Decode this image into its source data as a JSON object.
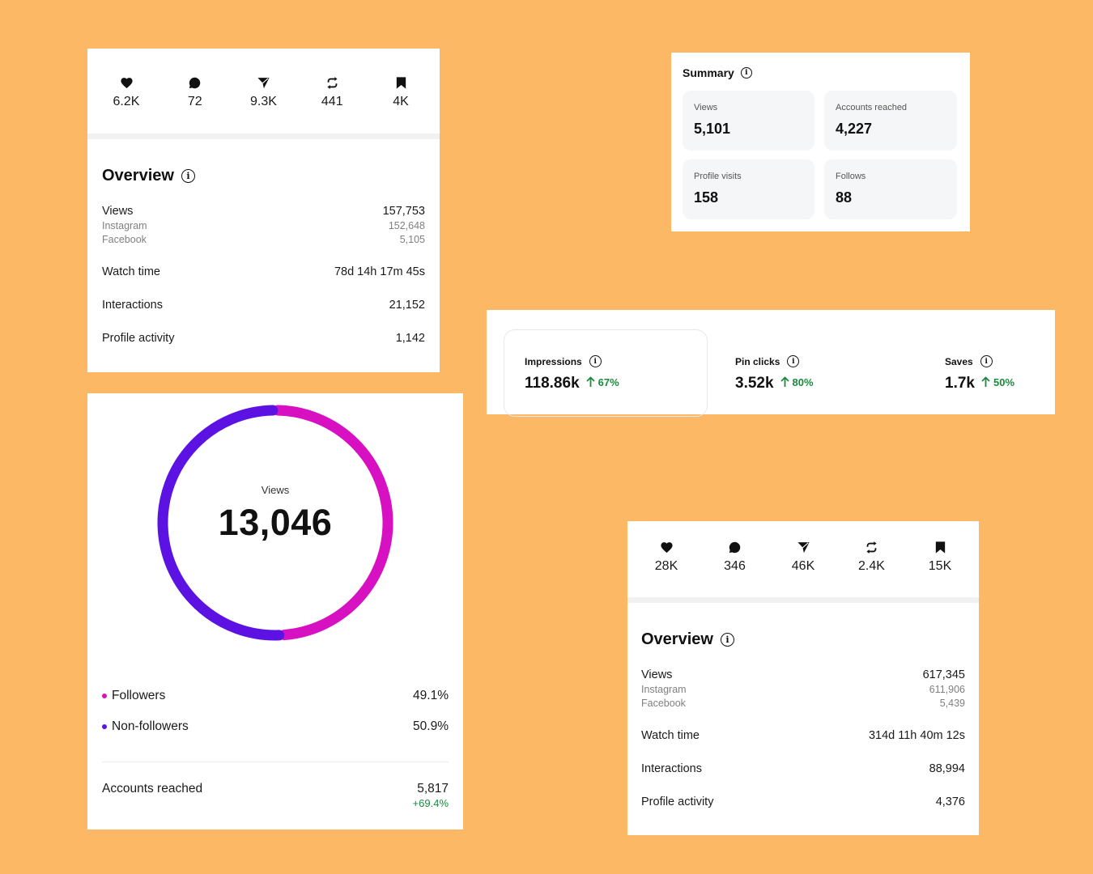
{
  "colors": {
    "background": "#FDB866",
    "followers": "#D711C2",
    "non_followers": "#5B12E3",
    "positive": "#1B8A3D"
  },
  "post_one": {
    "engagement": [
      {
        "icon": "heart-icon",
        "value": "6.2K"
      },
      {
        "icon": "comment-icon",
        "value": "72"
      },
      {
        "icon": "share-icon",
        "value": "9.3K"
      },
      {
        "icon": "repost-icon",
        "value": "441"
      },
      {
        "icon": "bookmark-icon",
        "value": "4K"
      }
    ],
    "overview": {
      "title": "Overview",
      "views_label": "Views",
      "views_value": "157,753",
      "instagram_label": "Instagram",
      "instagram_value": "152,648",
      "facebook_label": "Facebook",
      "facebook_value": "5,105",
      "watch_time_label": "Watch time",
      "watch_time_value": "78d 14h 17m 45s",
      "interactions_label": "Interactions",
      "interactions_value": "21,152",
      "profile_activity_label": "Profile activity",
      "profile_activity_value": "1,142"
    }
  },
  "post_two": {
    "engagement": [
      {
        "icon": "heart-icon",
        "value": "28K"
      },
      {
        "icon": "comment-icon",
        "value": "346"
      },
      {
        "icon": "share-icon",
        "value": "46K"
      },
      {
        "icon": "repost-icon",
        "value": "2.4K"
      },
      {
        "icon": "bookmark-icon",
        "value": "15K"
      }
    ],
    "overview": {
      "title": "Overview",
      "views_label": "Views",
      "views_value": "617,345",
      "instagram_label": "Instagram",
      "instagram_value": "611,906",
      "facebook_label": "Facebook",
      "facebook_value": "5,439",
      "watch_time_label": "Watch time",
      "watch_time_value": "314d 11h 40m 12s",
      "interactions_label": "Interactions",
      "interactions_value": "88,994",
      "profile_activity_label": "Profile activity",
      "profile_activity_value": "4,376"
    }
  },
  "summary": {
    "title": "Summary",
    "tiles": [
      {
        "label": "Views",
        "value": "5,101"
      },
      {
        "label": "Accounts reached",
        "value": "4,227"
      },
      {
        "label": "Profile visits",
        "value": "158"
      },
      {
        "label": "Follows",
        "value": "88"
      }
    ]
  },
  "pin_stats": [
    {
      "label": "Impressions",
      "value": "118.86k",
      "change": "67%"
    },
    {
      "label": "Pin clicks",
      "value": "3.52k",
      "change": "80%"
    },
    {
      "label": "Saves",
      "value": "1.7k",
      "change": "50%"
    }
  ],
  "donut": {
    "center_label": "Views",
    "center_value": "13,046",
    "followers_label": "Followers",
    "followers_pct": "49.1%",
    "non_followers_label": "Non-followers",
    "non_followers_pct": "50.9%",
    "accounts_reached_label": "Accounts reached",
    "accounts_reached_value": "5,817",
    "accounts_reached_change": "+69.4%"
  },
  "chart_data": {
    "type": "pie",
    "categories": [
      "Followers",
      "Non-followers"
    ],
    "values": [
      49.1,
      50.9
    ]
  }
}
